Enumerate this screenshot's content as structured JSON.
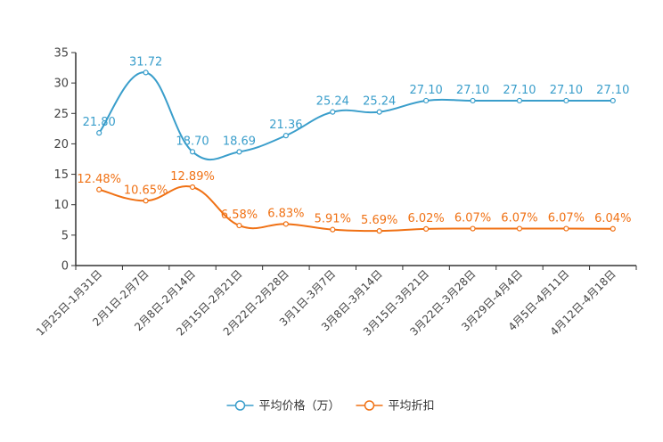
{
  "chart_data": {
    "type": "line",
    "title": "",
    "xlabel": "",
    "ylabel": "",
    "ylim": [
      0,
      35
    ],
    "yticks": [
      "0",
      "5",
      "10",
      "15",
      "20",
      "25",
      "30",
      "35"
    ],
    "categories": [
      "1月25日-1月31日",
      "2月1日-2月7日",
      "2月8日-2月14日",
      "2月15日-2月21日",
      "2月22日-2月28日",
      "3月1日-3月7日",
      "3月8日-3月14日",
      "3月15日-3月21日",
      "3月22日-3月28日",
      "3月29日-4月4日",
      "4月5日-4月11日",
      "4月12日-4月18日"
    ],
    "series": [
      {
        "name": "平均价格（万）",
        "color": "#3a9ecb",
        "values": [
          21.8,
          31.72,
          18.7,
          18.69,
          21.36,
          25.24,
          25.24,
          27.1,
          27.1,
          27.1,
          27.1,
          27.1
        ],
        "labels": [
          "21.80",
          "31.72",
          "18.70",
          "18.69",
          "21.36",
          "25.24",
          "25.24",
          "27.10",
          "27.10",
          "27.10",
          "27.10",
          "27.10"
        ]
      },
      {
        "name": "平均折扣",
        "color": "#f07114",
        "values": [
          12.48,
          10.65,
          12.89,
          6.58,
          6.83,
          5.91,
          5.69,
          6.02,
          6.07,
          6.07,
          6.07,
          6.04
        ],
        "labels": [
          "12.48%",
          "10.65%",
          "12.89%",
          "6.58%",
          "6.83%",
          "5.91%",
          "5.69%",
          "6.02%",
          "6.07%",
          "6.07%",
          "6.07%",
          "6.04%"
        ]
      }
    ],
    "legend": "bottom-center"
  }
}
